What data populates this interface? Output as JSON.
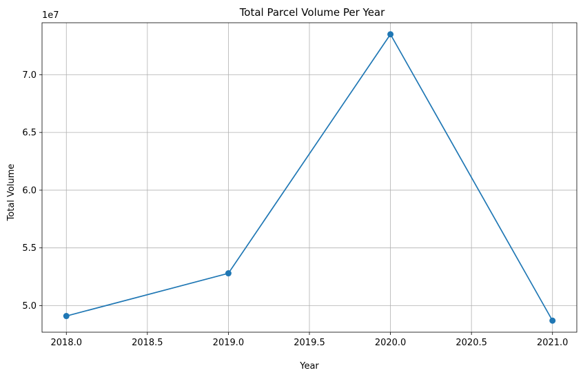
{
  "chart_data": {
    "type": "line",
    "title": "Total Parcel Volume Per Year",
    "xlabel": "Year",
    "ylabel": "Total Volume",
    "y_offset_label": "1e7",
    "x": [
      2018,
      2019,
      2020,
      2021
    ],
    "series": [
      {
        "values": [
          49100000,
          52800000,
          73500000,
          48700000
        ],
        "color": "#1f77b4",
        "marker": "circle"
      }
    ],
    "xlim": [
      2017.85,
      2021.15
    ],
    "ylim": [
      47700000,
      74500000
    ],
    "x_ticks": [
      2018.0,
      2018.5,
      2019.0,
      2019.5,
      2020.0,
      2020.5,
      2021.0
    ],
    "x_tick_labels": [
      "2018.0",
      "2018.5",
      "2019.0",
      "2019.5",
      "2020.0",
      "2020.5",
      "2021.0"
    ],
    "y_ticks": [
      50000000,
      55000000,
      60000000,
      65000000,
      70000000
    ],
    "y_tick_labels": [
      "5.0",
      "5.5",
      "6.0",
      "6.5",
      "7.0"
    ],
    "grid": true,
    "legend": false
  }
}
